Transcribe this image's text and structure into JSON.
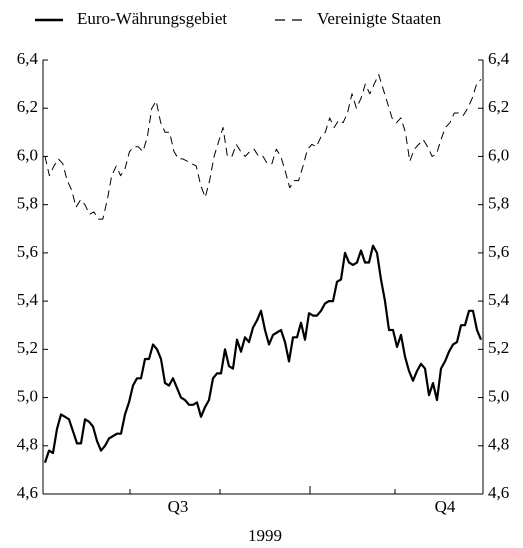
{
  "chart_data": {
    "type": "line",
    "legend": "top",
    "series": [
      {
        "name": "Euro-Währungsgebiet",
        "color": "#000000",
        "style": "solid",
        "values": [
          4.73,
          4.78,
          4.77,
          4.87,
          4.93,
          4.92,
          4.91,
          4.86,
          4.81,
          4.81,
          4.91,
          4.9,
          4.88,
          4.82,
          4.78,
          4.8,
          4.83,
          4.84,
          4.85,
          4.85,
          4.93,
          4.98,
          5.05,
          5.08,
          5.08,
          5.16,
          5.16,
          5.22,
          5.2,
          5.16,
          5.06,
          5.05,
          5.08,
          5.04,
          5.0,
          4.99,
          4.97,
          4.97,
          4.98,
          4.92,
          4.96,
          4.99,
          5.08,
          5.1,
          5.1,
          5.2,
          5.13,
          5.12,
          5.24,
          5.19,
          5.25,
          5.23,
          5.29,
          5.32,
          5.36,
          5.28,
          5.22,
          5.26,
          5.27,
          5.28,
          5.23,
          5.15,
          5.25,
          5.25,
          5.31,
          5.24,
          5.35,
          5.34,
          5.34,
          5.36,
          5.39,
          5.4,
          5.4,
          5.48,
          5.49,
          5.6,
          5.56,
          5.55,
          5.56,
          5.61,
          5.56,
          5.56,
          5.63,
          5.6,
          5.49,
          5.4,
          5.28,
          5.28,
          5.21,
          5.26,
          5.17,
          5.11,
          5.07,
          5.11,
          5.14,
          5.12,
          5.01,
          5.06,
          4.99,
          5.12,
          5.15,
          5.19,
          5.22,
          5.23,
          5.3,
          5.3,
          5.36,
          5.36,
          5.28,
          5.24
        ]
      },
      {
        "name": "Vereinigte Staaten",
        "color": "#000000",
        "style": "dashed",
        "values": [
          6.0,
          5.92,
          5.96,
          5.99,
          5.97,
          5.9,
          5.86,
          5.79,
          5.82,
          5.8,
          5.76,
          5.77,
          5.74,
          5.74,
          5.82,
          5.92,
          5.96,
          5.92,
          5.95,
          6.02,
          6.04,
          6.04,
          6.02,
          6.08,
          6.2,
          6.23,
          6.14,
          6.1,
          6.1,
          6.02,
          5.99,
          5.99,
          5.98,
          5.97,
          5.96,
          5.88,
          5.83,
          5.9,
          6.0,
          6.06,
          6.12,
          6.0,
          6.0,
          6.05,
          6.02,
          6.0,
          6.02,
          6.03,
          6.0,
          6.0,
          5.97,
          5.97,
          6.03,
          6.0,
          5.94,
          5.87,
          5.9,
          5.9,
          5.96,
          6.03,
          6.05,
          6.04,
          6.08,
          6.1,
          6.16,
          6.12,
          6.15,
          6.14,
          6.18,
          6.26,
          6.2,
          6.24,
          6.3,
          6.26,
          6.3,
          6.34,
          6.28,
          6.22,
          6.16,
          6.14,
          6.16,
          6.1,
          5.98,
          6.03,
          6.05,
          6.07,
          6.04,
          6.0,
          6.01,
          6.07,
          6.12,
          6.14,
          6.18,
          6.18,
          6.17,
          6.2,
          6.24,
          6.3,
          6.32
        ]
      }
    ],
    "x_labels": [
      "Q3",
      "Q4"
    ],
    "x_title": "1999",
    "ylim": [
      4.6,
      6.4
    ],
    "yticks": [
      {
        "value": 4.6,
        "label": "4,6"
      },
      {
        "value": 4.8,
        "label": "4,8"
      },
      {
        "value": 5.0,
        "label": "5,0"
      },
      {
        "value": 5.2,
        "label": "5,2"
      },
      {
        "value": 5.4,
        "label": "5,4"
      },
      {
        "value": 5.6,
        "label": "5,6"
      },
      {
        "value": 5.8,
        "label": "5,8"
      },
      {
        "value": 6.0,
        "label": "6,0"
      },
      {
        "value": 6.2,
        "label": "6,2"
      },
      {
        "value": 6.4,
        "label": "6,4"
      }
    ],
    "y2lim": [
      4.6,
      6.4
    ],
    "y2ticks": [
      {
        "value": 4.6,
        "label": "4,6"
      },
      {
        "value": 4.8,
        "label": "4,8"
      },
      {
        "value": 5.0,
        "label": "5,0"
      },
      {
        "value": 5.2,
        "label": "5,2"
      },
      {
        "value": 5.4,
        "label": "5,4"
      },
      {
        "value": 5.6,
        "label": "5,6"
      },
      {
        "value": 5.8,
        "label": "5,8"
      },
      {
        "value": 6.0,
        "label": "6,0"
      },
      {
        "value": 6.2,
        "label": "6,2"
      },
      {
        "value": 6.4,
        "label": "6,4"
      }
    ]
  }
}
